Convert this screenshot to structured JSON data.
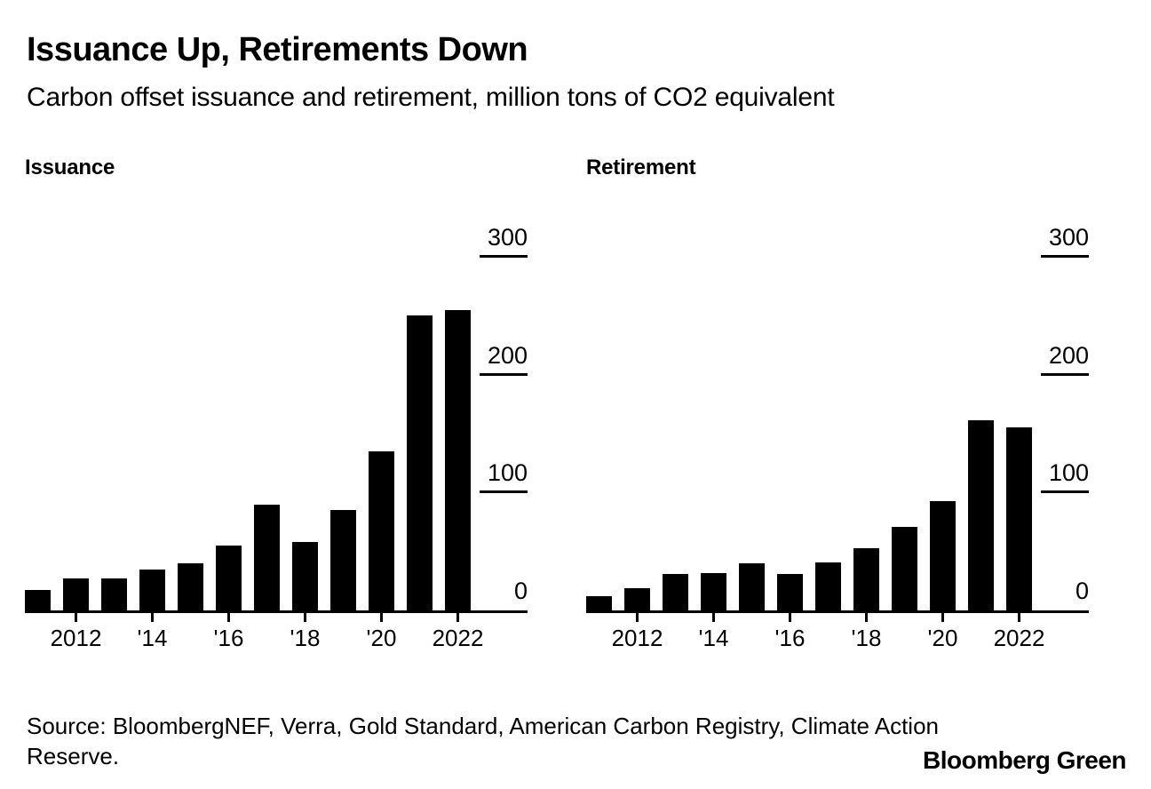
{
  "header": {
    "title": "Issuance Up, Retirements Down",
    "subtitle": "Carbon offset issuance and retirement, million tons of CO2 equivalent"
  },
  "colors": {
    "bar": "#000000",
    "text": "#000000",
    "background": "#ffffff"
  },
  "chart_data": [
    {
      "type": "bar",
      "title": "Issuance",
      "categories": [
        2011,
        2012,
        2013,
        2014,
        2015,
        2016,
        2017,
        2018,
        2019,
        2020,
        2021,
        2022
      ],
      "values": [
        17,
        27,
        27,
        35,
        40,
        55,
        90,
        58,
        85,
        135,
        250,
        255
      ],
      "ylim": [
        0,
        300
      ],
      "yticks": [
        0,
        100,
        200,
        300
      ],
      "xtick_labels": [
        "2012",
        "'14",
        "'16",
        "'18",
        "'20",
        "2022"
      ],
      "xtick_indices": [
        1,
        3,
        5,
        7,
        9,
        11
      ],
      "grid": "off",
      "legend": "none",
      "ytick_side": "right"
    },
    {
      "type": "bar",
      "title": "Retirement",
      "categories": [
        2011,
        2012,
        2013,
        2014,
        2015,
        2016,
        2017,
        2018,
        2019,
        2020,
        2021,
        2022
      ],
      "values": [
        12,
        19,
        31,
        32,
        40,
        31,
        41,
        53,
        71,
        93,
        161,
        155
      ],
      "ylim": [
        0,
        300
      ],
      "yticks": [
        0,
        100,
        200,
        300
      ],
      "xtick_labels": [
        "2012",
        "'14",
        "'16",
        "'18",
        "'20",
        "2022"
      ],
      "xtick_indices": [
        1,
        3,
        5,
        7,
        9,
        11
      ],
      "grid": "off",
      "legend": "none",
      "ytick_side": "right"
    }
  ],
  "footer": {
    "source": "Source: BloombergNEF, Verra, Gold Standard, American Carbon Registry, Climate Action Reserve.",
    "brand": "Bloomberg Green"
  }
}
